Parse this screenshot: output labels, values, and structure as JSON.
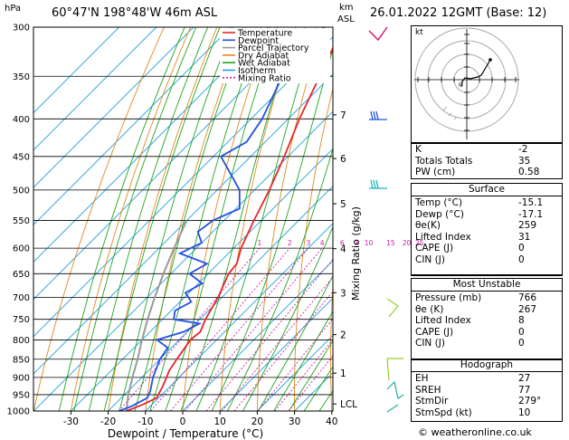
{
  "header": {
    "location": "60°47'N 198°48'W 46m ASL",
    "datetime": "26.01.2022 12GMT (Base: 12)",
    "hpa_unit": "hPa",
    "km_unit": "km",
    "asl_unit": "ASL"
  },
  "chart_data": {
    "type": "skew-t",
    "xlabel": "Dewpoint / Temperature (°C)",
    "ylabel_right": "Mixing Ratio (g/kg)",
    "pressure_ticks": [
      300,
      350,
      400,
      450,
      500,
      550,
      600,
      650,
      700,
      750,
      800,
      850,
      900,
      950,
      1000
    ],
    "temp_ticks": [
      -30,
      -20,
      -10,
      0,
      10,
      20,
      30,
      40
    ],
    "xlim": [
      -35,
      40
    ],
    "ylim": [
      1000,
      300
    ],
    "km_ticks": [
      {
        "label": "7",
        "p": 395
      },
      {
        "label": "6",
        "p": 453
      },
      {
        "label": "5",
        "p": 522
      },
      {
        "label": "4",
        "p": 601
      },
      {
        "label": "3",
        "p": 690
      },
      {
        "label": "2",
        "p": 787
      },
      {
        "label": "1",
        "p": 888
      },
      {
        "label": "LCL",
        "p": 978
      }
    ],
    "mixing_ratio_labels": [
      "1",
      "2",
      "3",
      "4",
      "6",
      "8",
      "10",
      "15",
      "20",
      "25"
    ],
    "legend": [
      {
        "name": "Temperature",
        "color": "#e8232b"
      },
      {
        "name": "Dewpoint",
        "color": "#2450e0"
      },
      {
        "name": "Parcel Trajectory",
        "color": "#999999"
      },
      {
        "name": "Dry Adiabat",
        "color": "#e08a1e"
      },
      {
        "name": "Wet Adiabat",
        "color": "#1fa51f"
      },
      {
        "name": "Isotherm",
        "color": "#1fa0e0"
      },
      {
        "name": "Mixing Ratio",
        "color": "#cc22aa"
      }
    ],
    "temperature": [
      {
        "p": 1000,
        "t": -15.1
      },
      {
        "p": 980,
        "t": -12.5
      },
      {
        "p": 960,
        "t": -10.5
      },
      {
        "p": 925,
        "t": -12
      },
      {
        "p": 880,
        "t": -14.5
      },
      {
        "p": 850,
        "t": -15.5
      },
      {
        "p": 800,
        "t": -17
      },
      {
        "p": 780,
        "t": -16.5
      },
      {
        "p": 750,
        "t": -18.5
      },
      {
        "p": 700,
        "t": -21
      },
      {
        "p": 650,
        "t": -24.5
      },
      {
        "p": 630,
        "t": -25
      },
      {
        "p": 600,
        "t": -28
      },
      {
        "p": 550,
        "t": -32
      },
      {
        "p": 500,
        "t": -36
      },
      {
        "p": 450,
        "t": -41
      },
      {
        "p": 400,
        "t": -47
      },
      {
        "p": 350,
        "t": -53
      },
      {
        "p": 300,
        "t": -60
      }
    ],
    "dewpoint": [
      {
        "p": 1000,
        "t": -17.1
      },
      {
        "p": 985,
        "t": -15
      },
      {
        "p": 960,
        "t": -13
      },
      {
        "p": 940,
        "t": -14
      },
      {
        "p": 900,
        "t": -17
      },
      {
        "p": 850,
        "t": -20
      },
      {
        "p": 820,
        "t": -21
      },
      {
        "p": 800,
        "t": -26
      },
      {
        "p": 780,
        "t": -21
      },
      {
        "p": 760,
        "t": -19
      },
      {
        "p": 750,
        "t": -27
      },
      {
        "p": 730,
        "t": -29
      },
      {
        "p": 710,
        "t": -27
      },
      {
        "p": 690,
        "t": -31
      },
      {
        "p": 670,
        "t": -29
      },
      {
        "p": 650,
        "t": -35
      },
      {
        "p": 630,
        "t": -33
      },
      {
        "p": 610,
        "t": -43
      },
      {
        "p": 590,
        "t": -40
      },
      {
        "p": 570,
        "t": -44
      },
      {
        "p": 550,
        "t": -43
      },
      {
        "p": 530,
        "t": -39
      },
      {
        "p": 500,
        "t": -44
      },
      {
        "p": 450,
        "t": -58
      },
      {
        "p": 430,
        "t": -55
      },
      {
        "p": 400,
        "t": -57
      },
      {
        "p": 350,
        "t": -63
      },
      {
        "p": 300,
        "t": -65
      }
    ],
    "parcel": [
      {
        "p": 1000,
        "t": -15.1
      },
      {
        "p": 950,
        "t": -19
      },
      {
        "p": 900,
        "t": -22.5
      },
      {
        "p": 850,
        "t": -26
      },
      {
        "p": 800,
        "t": -30
      },
      {
        "p": 750,
        "t": -34
      },
      {
        "p": 700,
        "t": -38
      },
      {
        "p": 650,
        "t": -42
      },
      {
        "p": 600,
        "t": -46
      },
      {
        "p": 550,
        "t": -50
      }
    ]
  },
  "indices": {
    "k_label": "K",
    "k": "-2",
    "tt_label": "Totals Totals",
    "tt": "35",
    "pw_label": "PW (cm)",
    "pw": "0.58"
  },
  "surface": {
    "title": "Surface",
    "rows": [
      {
        "label": "Temp (°C)",
        "value": "-15.1"
      },
      {
        "label": "Dewp (°C)",
        "value": "-17.1"
      },
      {
        "label": "θe(K)",
        "value": "259"
      },
      {
        "label": "Lifted Index",
        "value": "31"
      },
      {
        "label": "CAPE (J)",
        "value": "0"
      },
      {
        "label": "CIN (J)",
        "value": "0"
      }
    ]
  },
  "most_unstable": {
    "title": "Most Unstable",
    "rows": [
      {
        "label": "Pressure (mb)",
        "value": "766"
      },
      {
        "label": "θe (K)",
        "value": "267"
      },
      {
        "label": "Lifted Index",
        "value": "8"
      },
      {
        "label": "CAPE (J)",
        "value": "0"
      },
      {
        "label": "CIN (J)",
        "value": "0"
      }
    ]
  },
  "hodograph": {
    "title": "Hodograph",
    "unit": "kt",
    "rows": [
      {
        "label": "EH",
        "value": "27"
      },
      {
        "label": "SREH",
        "value": "77"
      },
      {
        "label": "StmDir",
        "value": "279°"
      },
      {
        "label": "StmSpd (kt)",
        "value": "10"
      }
    ]
  },
  "footer": {
    "credit": "© weatheronline.co.uk"
  }
}
